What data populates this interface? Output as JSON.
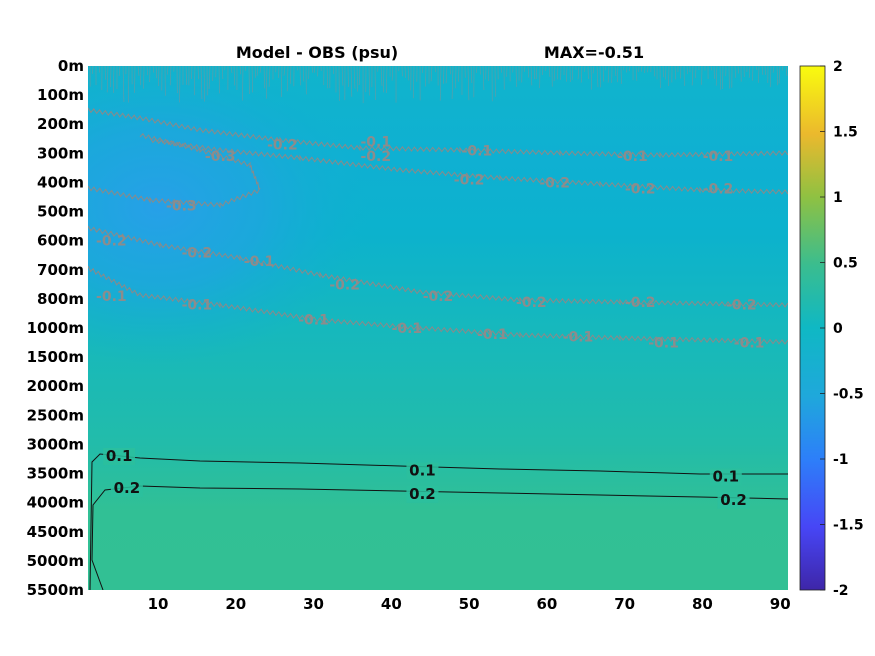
{
  "chart_data": {
    "type": "heatmap",
    "title": "Model - OBS (psu)",
    "annotation": "MAX=-0.51",
    "xlim": [
      1,
      91
    ],
    "x_ticks": [
      "10",
      "20",
      "30",
      "40",
      "50",
      "60",
      "70",
      "80",
      "90"
    ],
    "x_tick_values": [
      10,
      20,
      30,
      40,
      50,
      60,
      70,
      80,
      90
    ],
    "y_ticks": [
      "0m",
      "100m",
      "200m",
      "300m",
      "400m",
      "500m",
      "600m",
      "700m",
      "800m",
      "1000m",
      "1500m",
      "2000m",
      "2500m",
      "3000m",
      "3500m",
      "4000m",
      "4500m",
      "5000m",
      "5500m"
    ],
    "y_axis_direction": "depth increasing downward",
    "colorbar": {
      "range": [
        -2,
        2
      ],
      "ticks": [
        "2",
        "1.5",
        "1",
        "0.5",
        "0",
        "-0.5",
        "-1",
        "-1.5",
        "-2"
      ],
      "tick_values": [
        2,
        1.5,
        1,
        0.5,
        0,
        -0.5,
        -1,
        -1.5,
        -2
      ],
      "colormap": "parula"
    },
    "grey_contour_labels": [
      {
        "text": "-0.1",
        "x": 38,
        "depth_index": 2.6
      },
      {
        "text": "-0.1",
        "x": 51,
        "depth_index": 2.9
      },
      {
        "text": "-0.1",
        "x": 71,
        "depth_index": 3.1
      },
      {
        "text": "-0.1",
        "x": 82,
        "depth_index": 3.1
      },
      {
        "text": "-0.2",
        "x": 26,
        "depth_index": 2.7
      },
      {
        "text": "-0.2",
        "x": 38,
        "depth_index": 3.1
      },
      {
        "text": "-0.2",
        "x": 50,
        "depth_index": 3.9
      },
      {
        "text": "-0.2",
        "x": 61,
        "depth_index": 4.0
      },
      {
        "text": "-0.3",
        "x": 18,
        "depth_index": 3.1
      },
      {
        "text": "-0.3",
        "x": 13,
        "depth_index": 4.8
      },
      {
        "text": "-0.2",
        "x": 4,
        "depth_index": 6.0
      },
      {
        "text": "-0.2",
        "x": 15,
        "depth_index": 6.4
      },
      {
        "text": "-0.1",
        "x": 23,
        "depth_index": 6.7
      },
      {
        "text": "-0.1",
        "x": 4,
        "depth_index": 7.9
      },
      {
        "text": "-0.1",
        "x": 15,
        "depth_index": 8.2
      },
      {
        "text": "-0.2",
        "x": 34,
        "depth_index": 7.5
      },
      {
        "text": "-0.2",
        "x": 46,
        "depth_index": 7.9
      },
      {
        "text": "-0.2",
        "x": 58,
        "depth_index": 8.1
      },
      {
        "text": "-0.2",
        "x": 72,
        "depth_index": 8.1
      },
      {
        "text": "-0.2",
        "x": 85,
        "depth_index": 8.2
      },
      {
        "text": "-0.1",
        "x": 30,
        "depth_index": 8.7
      },
      {
        "text": "-0.1",
        "x": 42,
        "depth_index": 9.0
      },
      {
        "text": "-0.1",
        "x": 53,
        "depth_index": 9.2
      },
      {
        "text": "-0.1",
        "x": 64,
        "depth_index": 9.3
      },
      {
        "text": "-0.1",
        "x": 75,
        "depth_index": 9.5
      },
      {
        "text": "-0.1",
        "x": 86,
        "depth_index": 9.5
      },
      {
        "text": "-0.2",
        "x": 82,
        "depth_index": 4.2
      },
      {
        "text": "-0.2",
        "x": 72,
        "depth_index": 4.2
      }
    ],
    "black_contours": [
      {
        "level": 0.1,
        "labels": [
          {
            "text": "0.1",
            "x": 5,
            "depth_index": 13.4
          },
          {
            "text": "0.1",
            "x": 44,
            "depth_index": 13.9
          },
          {
            "text": "0.1",
            "x": 83,
            "depth_index": 14.1
          }
        ]
      },
      {
        "level": 0.2,
        "labels": [
          {
            "text": "0.2",
            "x": 6,
            "depth_index": 14.5
          },
          {
            "text": "0.2",
            "x": 44,
            "depth_index": 14.7
          },
          {
            "text": "0.2",
            "x": 84,
            "depth_index": 14.9
          }
        ]
      }
    ]
  }
}
